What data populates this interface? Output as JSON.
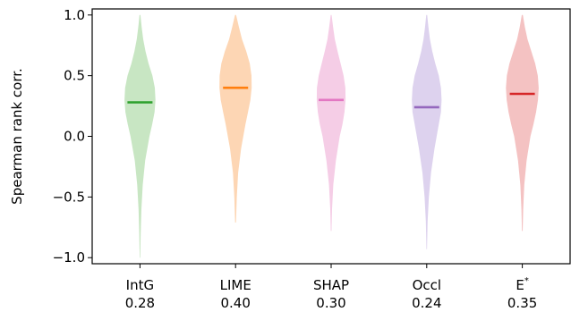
{
  "chart_data": {
    "type": "violin",
    "title": "",
    "xlabel": "",
    "ylabel": "Spearman rank corr.",
    "ylim": [
      -1.05,
      1.05
    ],
    "yticks": [
      -1.0,
      -0.5,
      0.0,
      0.5,
      1.0
    ],
    "ytick_labels": [
      "−1.0",
      "−0.5",
      "0.0",
      "0.5",
      "1.0"
    ],
    "grid": false,
    "categories": [
      "IntG",
      "LIME",
      "SHAP",
      "Occl",
      "E*"
    ],
    "series": [
      {
        "label": "IntG",
        "value_label": "0.28",
        "median": 0.28,
        "min": -1.0,
        "max": 1.0,
        "fill": "#c8e6c3",
        "line": "#2ca02c",
        "profile": [
          [
            -1.0,
            0.006
          ],
          [
            -0.8,
            0.016
          ],
          [
            -0.6,
            0.034
          ],
          [
            -0.4,
            0.065
          ],
          [
            -0.2,
            0.12
          ],
          [
            0.0,
            0.22
          ],
          [
            0.1,
            0.285
          ],
          [
            0.2,
            0.34
          ],
          [
            0.3,
            0.36
          ],
          [
            0.4,
            0.345
          ],
          [
            0.5,
            0.29
          ],
          [
            0.6,
            0.2
          ],
          [
            0.7,
            0.13
          ],
          [
            0.8,
            0.075
          ],
          [
            0.9,
            0.04
          ],
          [
            1.0,
            0.01
          ]
        ]
      },
      {
        "label": "LIME",
        "value_label": "0.40",
        "median": 0.4,
        "min": -0.71,
        "max": 1.0,
        "fill": "#fdd6b4",
        "line": "#ff7f0e",
        "profile": [
          [
            -0.71,
            0.01
          ],
          [
            -0.5,
            0.03
          ],
          [
            -0.3,
            0.06
          ],
          [
            -0.1,
            0.13
          ],
          [
            0.1,
            0.23
          ],
          [
            0.2,
            0.29
          ],
          [
            0.3,
            0.345
          ],
          [
            0.4,
            0.375
          ],
          [
            0.5,
            0.37
          ],
          [
            0.6,
            0.33
          ],
          [
            0.7,
            0.25
          ],
          [
            0.8,
            0.15
          ],
          [
            0.9,
            0.08
          ],
          [
            1.0,
            0.012
          ]
        ]
      },
      {
        "label": "SHAP",
        "value_label": "0.30",
        "median": 0.3,
        "min": -0.78,
        "max": 1.0,
        "fill": "#f5cde6",
        "line": "#e377c2",
        "profile": [
          [
            -0.78,
            0.008
          ],
          [
            -0.6,
            0.02
          ],
          [
            -0.4,
            0.05
          ],
          [
            -0.2,
            0.11
          ],
          [
            0.0,
            0.2
          ],
          [
            0.1,
            0.265
          ],
          [
            0.2,
            0.31
          ],
          [
            0.3,
            0.335
          ],
          [
            0.4,
            0.33
          ],
          [
            0.5,
            0.29
          ],
          [
            0.6,
            0.22
          ],
          [
            0.7,
            0.15
          ],
          [
            0.8,
            0.085
          ],
          [
            0.9,
            0.045
          ],
          [
            1.0,
            0.01
          ]
        ]
      },
      {
        "label": "Occl",
        "value_label": "0.24",
        "median": 0.24,
        "min": -0.93,
        "max": 1.0,
        "fill": "#ddd2ee",
        "line": "#9467bd",
        "profile": [
          [
            -0.93,
            0.006
          ],
          [
            -0.7,
            0.02
          ],
          [
            -0.5,
            0.05
          ],
          [
            -0.3,
            0.1
          ],
          [
            -0.1,
            0.18
          ],
          [
            0.1,
            0.28
          ],
          [
            0.2,
            0.33
          ],
          [
            0.3,
            0.345
          ],
          [
            0.4,
            0.33
          ],
          [
            0.5,
            0.28
          ],
          [
            0.6,
            0.2
          ],
          [
            0.7,
            0.13
          ],
          [
            0.8,
            0.075
          ],
          [
            0.9,
            0.04
          ],
          [
            1.0,
            0.01
          ]
        ]
      },
      {
        "label": "E*",
        "value_label": "0.35",
        "median": 0.35,
        "min": -0.78,
        "max": 1.0,
        "fill": "#f4c2c2",
        "line": "#d62728",
        "profile": [
          [
            -0.78,
            0.008
          ],
          [
            -0.6,
            0.02
          ],
          [
            -0.4,
            0.045
          ],
          [
            -0.2,
            0.1
          ],
          [
            0.0,
            0.19
          ],
          [
            0.1,
            0.26
          ],
          [
            0.2,
            0.32
          ],
          [
            0.3,
            0.365
          ],
          [
            0.4,
            0.38
          ],
          [
            0.5,
            0.36
          ],
          [
            0.6,
            0.3
          ],
          [
            0.7,
            0.21
          ],
          [
            0.8,
            0.12
          ],
          [
            0.9,
            0.06
          ],
          [
            1.0,
            0.012
          ]
        ]
      }
    ]
  }
}
